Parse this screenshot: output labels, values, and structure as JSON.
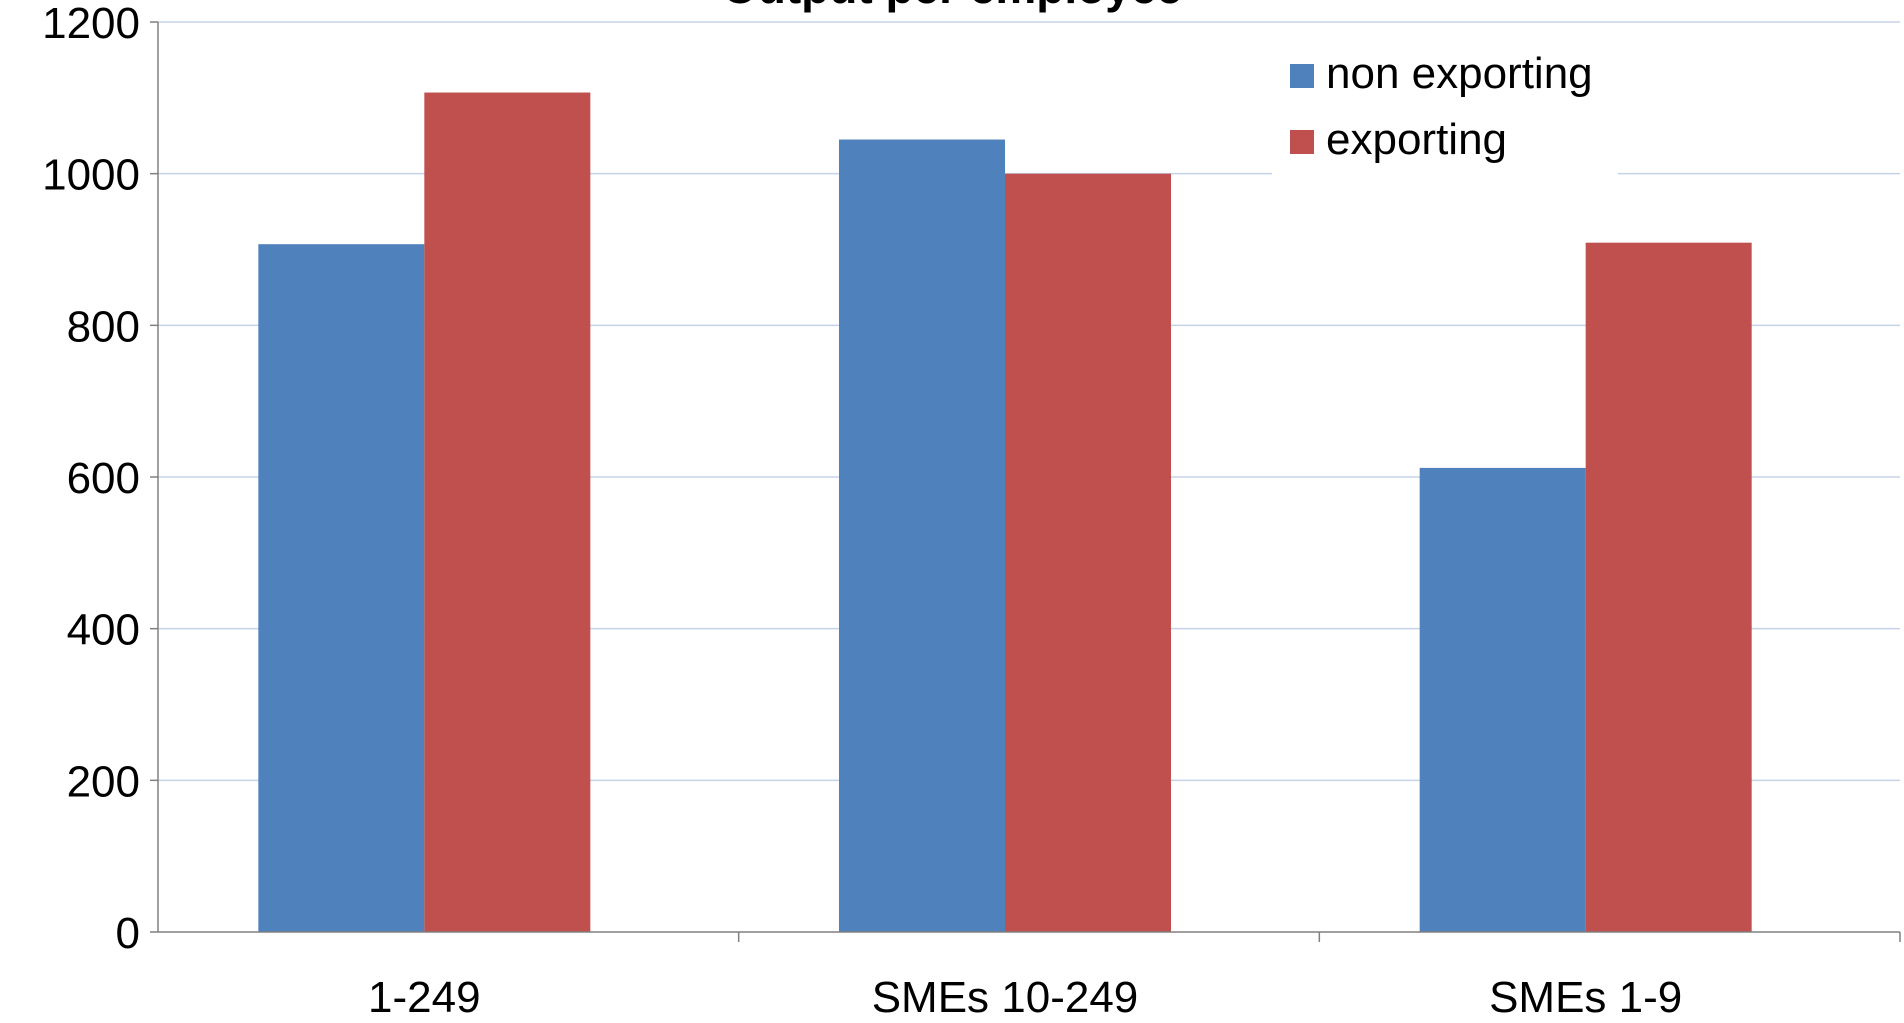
{
  "chart_data": {
    "type": "bar",
    "title": "Output per employee",
    "categories": [
      "1-249",
      "SMEs 10-249",
      "SMEs 1-9"
    ],
    "series": [
      {
        "name": "non exporting",
        "color": "#4F81BD",
        "values": [
          907,
          1045,
          612
        ]
      },
      {
        "name": "exporting",
        "color": "#C0504D",
        "values": [
          1107,
          1000,
          909
        ]
      }
    ],
    "yticks": [
      "0",
      "200",
      "400",
      "600",
      "800",
      "1000",
      "1200"
    ],
    "ylim": [
      0,
      1200
    ],
    "grid": true,
    "legend_position": "top-right",
    "xlabel": "",
    "ylabel": ""
  }
}
